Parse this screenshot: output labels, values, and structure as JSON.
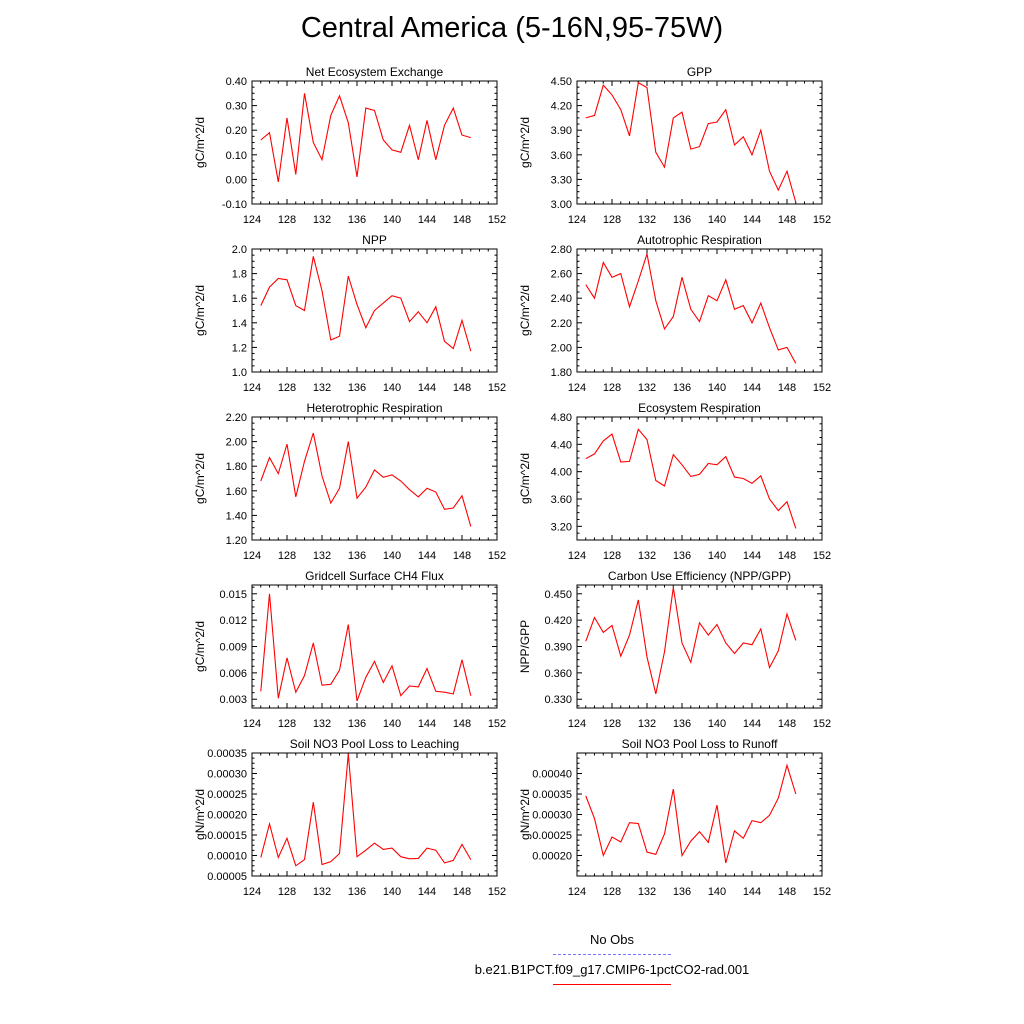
{
  "figure": {
    "title": "Central America (5-16N,95-75W)"
  },
  "legend": {
    "items": [
      {
        "label": "No Obs",
        "color": "#7777ff",
        "dash": true
      },
      {
        "label": "b.e21.B1PCT.f09_g17.CMIP6-1pctCO2-rad.001",
        "color": "#ff0000",
        "dash": false
      }
    ]
  },
  "chart_data": [
    {
      "type": "line",
      "title": "Net Ecosystem Exchange",
      "ylabel": "gC/m^2/d",
      "xlim": [
        124,
        152
      ],
      "xticks": [
        "124",
        "128",
        "132",
        "136",
        "140",
        "144",
        "148",
        "152"
      ],
      "ylim": [
        -0.1,
        0.4
      ],
      "yticks": [
        "-0.10",
        "0.00",
        "0.10",
        "0.20",
        "0.30",
        "0.40"
      ],
      "x": [
        125,
        126,
        127,
        128,
        129,
        130,
        131,
        132,
        133,
        134,
        135,
        136,
        137,
        138,
        139,
        140,
        141,
        142,
        143,
        144,
        145,
        146,
        147,
        148,
        149
      ],
      "y": [
        0.16,
        0.19,
        -0.01,
        0.25,
        0.02,
        0.35,
        0.15,
        0.08,
        0.26,
        0.34,
        0.23,
        0.01,
        0.29,
        0.28,
        0.16,
        0.12,
        0.11,
        0.22,
        0.08,
        0.24,
        0.08,
        0.22,
        0.29,
        0.18,
        0.17
      ],
      "color": "#ff0000"
    },
    {
      "type": "line",
      "title": "GPP",
      "ylabel": "gC/m^2/d",
      "xlim": [
        124,
        152
      ],
      "xticks": [
        "124",
        "128",
        "132",
        "136",
        "140",
        "144",
        "148",
        "152"
      ],
      "ylim": [
        3.0,
        4.5
      ],
      "yticks": [
        "3.00",
        "3.30",
        "3.60",
        "3.90",
        "4.20",
        "4.50"
      ],
      "x": [
        125,
        126,
        127,
        128,
        129,
        130,
        131,
        132,
        133,
        134,
        135,
        136,
        137,
        138,
        139,
        140,
        141,
        142,
        143,
        144,
        145,
        146,
        147,
        148,
        149
      ],
      "y": [
        4.05,
        4.08,
        4.45,
        4.33,
        4.15,
        3.83,
        4.48,
        4.42,
        3.63,
        3.45,
        4.05,
        4.12,
        3.67,
        3.7,
        3.98,
        4.0,
        4.15,
        3.72,
        3.82,
        3.6,
        3.9,
        3.4,
        3.17,
        3.4,
        3.02
      ],
      "color": "#ff0000"
    },
    {
      "type": "line",
      "title": "NPP",
      "ylabel": "gC/m^2/d",
      "xlim": [
        124,
        152
      ],
      "xticks": [
        "124",
        "128",
        "132",
        "136",
        "140",
        "144",
        "148",
        "152"
      ],
      "ylim": [
        1.0,
        2.0
      ],
      "yticks": [
        "1.0",
        "1.2",
        "1.4",
        "1.6",
        "1.8",
        "2.0"
      ],
      "x": [
        125,
        126,
        127,
        128,
        129,
        130,
        131,
        132,
        133,
        134,
        135,
        136,
        137,
        138,
        139,
        140,
        141,
        142,
        143,
        144,
        145,
        146,
        147,
        148,
        149
      ],
      "y": [
        1.54,
        1.69,
        1.76,
        1.75,
        1.54,
        1.5,
        1.94,
        1.66,
        1.26,
        1.29,
        1.78,
        1.55,
        1.36,
        1.5,
        1.56,
        1.62,
        1.6,
        1.41,
        1.49,
        1.4,
        1.53,
        1.25,
        1.19,
        1.42,
        1.17
      ],
      "color": "#ff0000"
    },
    {
      "type": "line",
      "title": "Autotrophic Respiration",
      "ylabel": "gC/m^2/d",
      "xlim": [
        124,
        152
      ],
      "xticks": [
        "124",
        "128",
        "132",
        "136",
        "140",
        "144",
        "148",
        "152"
      ],
      "ylim": [
        1.8,
        2.8
      ],
      "yticks": [
        "1.80",
        "2.00",
        "2.20",
        "2.40",
        "2.60",
        "2.80"
      ],
      "x": [
        125,
        126,
        127,
        128,
        129,
        130,
        131,
        132,
        133,
        134,
        135,
        136,
        137,
        138,
        139,
        140,
        141,
        142,
        143,
        144,
        145,
        146,
        147,
        148,
        149
      ],
      "y": [
        2.51,
        2.4,
        2.69,
        2.57,
        2.6,
        2.33,
        2.54,
        2.76,
        2.38,
        2.15,
        2.25,
        2.57,
        2.31,
        2.21,
        2.42,
        2.38,
        2.55,
        2.31,
        2.34,
        2.2,
        2.36,
        2.16,
        1.98,
        2.0,
        1.87
      ],
      "color": "#ff0000"
    },
    {
      "type": "line",
      "title": "Heterotrophic Respiration",
      "ylabel": "gC/m^2/d",
      "xlim": [
        124,
        152
      ],
      "xticks": [
        "124",
        "128",
        "132",
        "136",
        "140",
        "144",
        "148",
        "152"
      ],
      "ylim": [
        1.2,
        2.2
      ],
      "yticks": [
        "1.20",
        "1.40",
        "1.60",
        "1.80",
        "2.00",
        "2.20"
      ],
      "x": [
        125,
        126,
        127,
        128,
        129,
        130,
        131,
        132,
        133,
        134,
        135,
        136,
        137,
        138,
        139,
        140,
        141,
        142,
        143,
        144,
        145,
        146,
        147,
        148,
        149
      ],
      "y": [
        1.68,
        1.87,
        1.74,
        1.98,
        1.55,
        1.84,
        2.07,
        1.72,
        1.5,
        1.62,
        2.0,
        1.54,
        1.63,
        1.77,
        1.71,
        1.73,
        1.68,
        1.61,
        1.55,
        1.62,
        1.59,
        1.45,
        1.46,
        1.56,
        1.31
      ],
      "color": "#ff0000"
    },
    {
      "type": "line",
      "title": "Ecosystem Respiration",
      "ylabel": "gC/m^2/d",
      "xlim": [
        124,
        152
      ],
      "xticks": [
        "124",
        "128",
        "132",
        "136",
        "140",
        "144",
        "148",
        "152"
      ],
      "ylim": [
        3.0,
        4.8
      ],
      "yticks": [
        "3.20",
        "3.60",
        "4.00",
        "4.40",
        "4.80"
      ],
      "x": [
        125,
        126,
        127,
        128,
        129,
        130,
        131,
        132,
        133,
        134,
        135,
        136,
        137,
        138,
        139,
        140,
        141,
        142,
        143,
        144,
        145,
        146,
        147,
        148,
        149
      ],
      "y": [
        4.19,
        4.26,
        4.45,
        4.55,
        4.14,
        4.15,
        4.62,
        4.47,
        3.87,
        3.79,
        4.25,
        4.1,
        3.93,
        3.96,
        4.12,
        4.1,
        4.22,
        3.92,
        3.9,
        3.83,
        3.94,
        3.6,
        3.43,
        3.56,
        3.17
      ],
      "color": "#ff0000"
    },
    {
      "type": "line",
      "title": "Gridcell Surface CH4 Flux",
      "ylabel": "gC/m^2/d",
      "xlim": [
        124,
        152
      ],
      "xticks": [
        "124",
        "128",
        "132",
        "136",
        "140",
        "144",
        "148",
        "152"
      ],
      "ylim": [
        0.002,
        0.016
      ],
      "yticks": [
        "0.003",
        "0.006",
        "0.009",
        "0.012",
        "0.015"
      ],
      "x": [
        125,
        126,
        127,
        128,
        129,
        130,
        131,
        132,
        133,
        134,
        135,
        136,
        137,
        138,
        139,
        140,
        141,
        142,
        143,
        144,
        145,
        146,
        147,
        148,
        149
      ],
      "y": [
        0.0039,
        0.015,
        0.0031,
        0.0077,
        0.0038,
        0.0057,
        0.0094,
        0.0046,
        0.0047,
        0.0063,
        0.0115,
        0.0028,
        0.0055,
        0.0073,
        0.0049,
        0.0068,
        0.0034,
        0.0045,
        0.0044,
        0.0065,
        0.0039,
        0.0038,
        0.0036,
        0.0075,
        0.0034
      ],
      "color": "#ff0000"
    },
    {
      "type": "line",
      "title": "Carbon Use Efficiency (NPP/GPP)",
      "ylabel": "NPP/GPP",
      "xlim": [
        124,
        152
      ],
      "xticks": [
        "124",
        "128",
        "132",
        "136",
        "140",
        "144",
        "148",
        "152"
      ],
      "ylim": [
        0.32,
        0.46
      ],
      "yticks": [
        "0.330",
        "0.360",
        "0.390",
        "0.420",
        "0.450"
      ],
      "x": [
        125,
        126,
        127,
        128,
        129,
        130,
        131,
        132,
        133,
        134,
        135,
        136,
        137,
        138,
        139,
        140,
        141,
        142,
        143,
        144,
        145,
        146,
        147,
        148,
        149
      ],
      "y": [
        0.396,
        0.423,
        0.406,
        0.414,
        0.379,
        0.403,
        0.443,
        0.378,
        0.336,
        0.384,
        0.457,
        0.394,
        0.372,
        0.417,
        0.403,
        0.415,
        0.394,
        0.382,
        0.394,
        0.392,
        0.41,
        0.366,
        0.385,
        0.427,
        0.397
      ],
      "color": "#ff0000"
    },
    {
      "type": "line",
      "title": "Soil NO3 Pool Loss to Leaching",
      "ylabel": "gN/m^2/d",
      "xlim": [
        124,
        152
      ],
      "xticks": [
        "124",
        "128",
        "132",
        "136",
        "140",
        "144",
        "148",
        "152"
      ],
      "ylim": [
        5e-05,
        0.00035
      ],
      "yticks": [
        "0.00005",
        "0.00010",
        "0.00015",
        "0.00020",
        "0.00025",
        "0.00030",
        "0.00035"
      ],
      "x": [
        125,
        126,
        127,
        128,
        129,
        130,
        131,
        132,
        133,
        134,
        135,
        136,
        137,
        138,
        139,
        140,
        141,
        142,
        143,
        144,
        145,
        146,
        147,
        148,
        149
      ],
      "y": [
        9.5e-05,
        0.000177,
        9.5e-05,
        0.000142,
        7.5e-05,
        9e-05,
        0.00023,
        7.8e-05,
        8.5e-05,
        0.000105,
        0.000348,
        9.7e-05,
        0.000113,
        0.00013,
        0.000115,
        0.000118,
        9.7e-05,
        9.2e-05,
        9.3e-05,
        0.000118,
        0.000113,
        8.2e-05,
        8.8e-05,
        0.000127,
        9e-05
      ],
      "color": "#ff0000"
    },
    {
      "type": "line",
      "title": "Soil NO3 Pool Loss to Runoff",
      "ylabel": "gN/m^2/d",
      "xlim": [
        124,
        152
      ],
      "xticks": [
        "124",
        "128",
        "132",
        "136",
        "140",
        "144",
        "148",
        "152"
      ],
      "ylim": [
        0.00015,
        0.00045
      ],
      "yticks": [
        "0.00020",
        "0.00025",
        "0.00030",
        "0.00035",
        "0.00040"
      ],
      "x": [
        125,
        126,
        127,
        128,
        129,
        130,
        131,
        132,
        133,
        134,
        135,
        136,
        137,
        138,
        139,
        140,
        141,
        142,
        143,
        144,
        145,
        146,
        147,
        148,
        149
      ],
      "y": [
        0.000345,
        0.00029,
        0.0002,
        0.000245,
        0.000233,
        0.00028,
        0.000278,
        0.000208,
        0.000203,
        0.000253,
        0.000362,
        0.0002,
        0.000235,
        0.000258,
        0.000232,
        0.000323,
        0.000182,
        0.00026,
        0.000242,
        0.000285,
        0.00028,
        0.000298,
        0.00034,
        0.00042,
        0.00035
      ],
      "color": "#ff0000"
    }
  ]
}
